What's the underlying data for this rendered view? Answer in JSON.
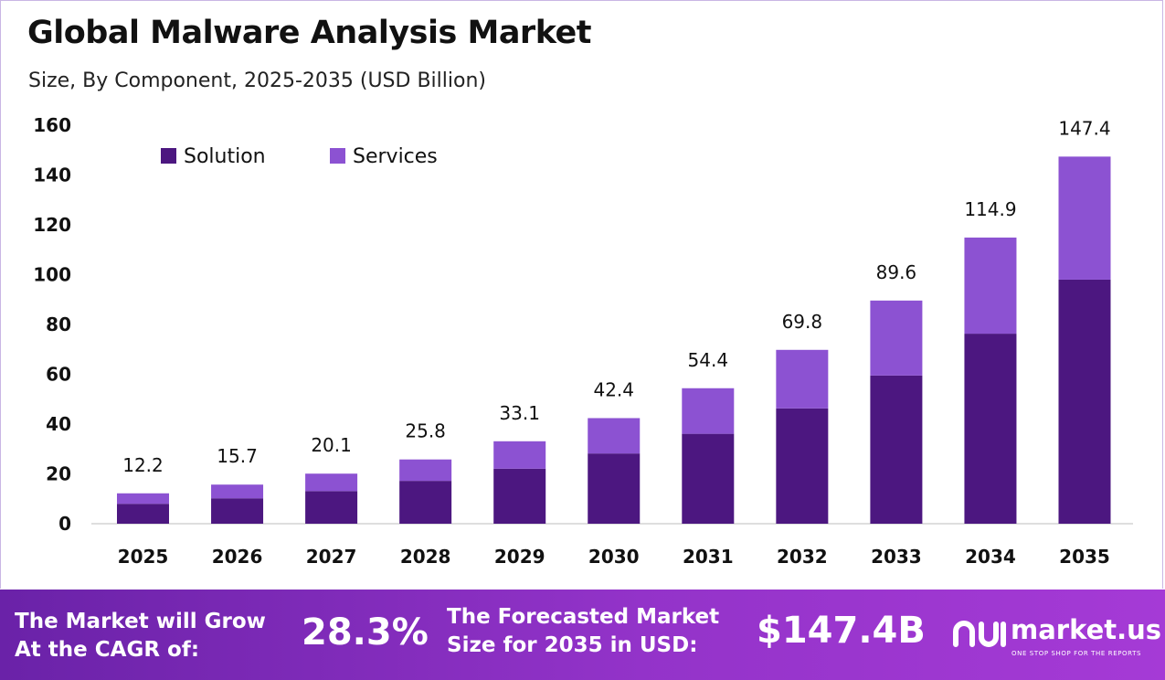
{
  "title": "Global Malware Analysis Market",
  "subtitle": "Size, By Component, 2025-2035 (USD Billion)",
  "chart_data": {
    "type": "bar",
    "stacked": true,
    "categories": [
      "2025",
      "2026",
      "2027",
      "2028",
      "2029",
      "2030",
      "2031",
      "2032",
      "2033",
      "2034",
      "2035"
    ],
    "series": [
      {
        "name": "Solution",
        "color": "#4c1780",
        "values": [
          8.0,
          10.2,
          13.1,
          17.2,
          22.1,
          28.2,
          36.1,
          46.3,
          59.5,
          76.3,
          98.0
        ]
      },
      {
        "name": "Services",
        "color": "#8c52d2",
        "values": [
          4.2,
          5.5,
          7.0,
          8.6,
          11.0,
          14.2,
          18.3,
          23.5,
          30.1,
          38.6,
          49.4
        ]
      }
    ],
    "totals": [
      "12.2",
      "15.7",
      "20.1",
      "25.8",
      "33.1",
      "42.4",
      "54.4",
      "69.8",
      "89.6",
      "114.9",
      "147.4"
    ],
    "yticks": [
      "0",
      "20",
      "40",
      "60",
      "80",
      "100",
      "120",
      "140",
      "160"
    ],
    "ylim": [
      0,
      160
    ],
    "grid": false,
    "legend_position": "top-left"
  },
  "footer": {
    "cagr_label_line1": "The Market will Grow",
    "cagr_label_line2": "At the CAGR of:",
    "cagr_value": "28.3%",
    "forecast_label_line1": "The Forecasted Market",
    "forecast_label_line2": "Size for 2035 in USD:",
    "forecast_value": "$147.4B",
    "brand_name": "market.us",
    "brand_tagline": "ONE STOP SHOP FOR THE REPORTS",
    "brand_icon": "market-us-logo-icon"
  },
  "colors": {
    "footer_start": "#6a22a8",
    "footer_end": "#a53ad6",
    "solution": "#4c1780",
    "services": "#8c52d2"
  }
}
